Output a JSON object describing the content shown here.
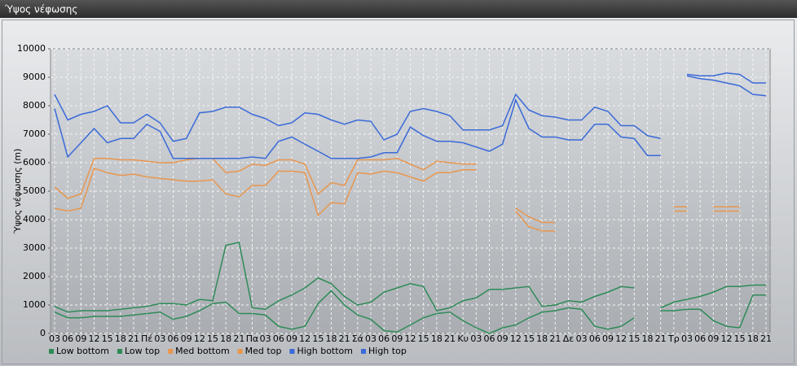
{
  "chart_data": {
    "type": "line",
    "title": "Ύψος νέφωσης",
    "y_label": "Ύψος νέφωσης (m)",
    "categories": [
      "03",
      "06",
      "09",
      "12",
      "15",
      "18",
      "21",
      "Πέ",
      "03",
      "06",
      "09",
      "12",
      "15",
      "18",
      "21",
      "Πα",
      "03",
      "06",
      "09",
      "12",
      "15",
      "18",
      "21",
      "Σά",
      "03",
      "06",
      "09",
      "12",
      "15",
      "18",
      "21",
      "Κυ",
      "03",
      "06",
      "09",
      "12",
      "15",
      "18",
      "21",
      "Δε",
      "03",
      "06",
      "09",
      "12",
      "15",
      "18",
      "21",
      "Τρ",
      "03",
      "06",
      "09",
      "12",
      "15",
      "18",
      "21"
    ],
    "ylim": [
      0,
      10000
    ],
    "yticks": [
      0,
      1000,
      2000,
      3000,
      4000,
      5000,
      6000,
      7000,
      8000,
      9000,
      10000
    ],
    "grid": true,
    "legend": "bottom",
    "series": [
      {
        "name": "Low bottom",
        "color": "#2e8b57",
        "values": [
          750,
          550,
          550,
          600,
          600,
          600,
          650,
          700,
          750,
          500,
          600,
          800,
          1050,
          1100,
          700,
          700,
          650,
          250,
          150,
          250,
          1050,
          1500,
          1000,
          650,
          500,
          100,
          50,
          300,
          550,
          700,
          750,
          450,
          200,
          0,
          200,
          300,
          550,
          750,
          800,
          900,
          850,
          250,
          150,
          250,
          550,
          null,
          800,
          800,
          850,
          850,
          450,
          250,
          200,
          1350,
          1350
        ]
      },
      {
        "name": "Low top",
        "color": "#2e8b57",
        "values": [
          950,
          750,
          800,
          800,
          800,
          850,
          900,
          950,
          1050,
          1050,
          1000,
          1200,
          1150,
          3100,
          3200,
          900,
          850,
          1150,
          1350,
          1600,
          1950,
          1750,
          1300,
          1000,
          1100,
          1450,
          1600,
          1750,
          1650,
          800,
          900,
          1150,
          1250,
          1550,
          1550,
          1600,
          1650,
          950,
          1000,
          1150,
          1100,
          1300,
          1450,
          1650,
          1600,
          null,
          900,
          1100,
          1200,
          1300,
          1450,
          1650,
          1650,
          1700,
          1700
        ]
      },
      {
        "name": "Med bottom",
        "color": "#e8964e",
        "values": [
          4400,
          4300,
          4400,
          5800,
          5650,
          5550,
          5600,
          5500,
          5450,
          5400,
          5350,
          5350,
          5400,
          4900,
          4800,
          5200,
          5200,
          5700,
          5700,
          5650,
          4150,
          4600,
          4550,
          5650,
          5600,
          5700,
          5650,
          5500,
          5350,
          5650,
          5650,
          5750,
          5750,
          null,
          null,
          4300,
          3750,
          3600,
          3600,
          null,
          null,
          null,
          null,
          null,
          null,
          null,
          null,
          4300,
          4300,
          null,
          4300,
          4300,
          4300,
          null,
          null
        ]
      },
      {
        "name": "Med top",
        "color": "#e8964e",
        "values": [
          5150,
          4750,
          4900,
          6150,
          6150,
          6100,
          6100,
          6050,
          6000,
          6000,
          6100,
          6150,
          6150,
          5650,
          5700,
          5950,
          5900,
          6100,
          6100,
          5950,
          4900,
          5300,
          5200,
          6100,
          6100,
          6100,
          6150,
          5950,
          5750,
          6050,
          6000,
          5950,
          5950,
          null,
          null,
          4400,
          4100,
          3900,
          3900,
          null,
          null,
          null,
          null,
          null,
          null,
          null,
          null,
          4450,
          4450,
          null,
          4450,
          4450,
          4450,
          null,
          null
        ]
      },
      {
        "name": "High bottom",
        "color": "#3a6ad8",
        "values": [
          7900,
          6200,
          6700,
          7200,
          6700,
          6850,
          6850,
          7350,
          7100,
          6150,
          6150,
          6150,
          6150,
          6150,
          6150,
          6200,
          6150,
          6750,
          6900,
          6650,
          6400,
          6150,
          6150,
          6150,
          6200,
          6350,
          6350,
          7250,
          6950,
          6750,
          6750,
          6700,
          6550,
          6400,
          6650,
          8200,
          7200,
          6900,
          6900,
          6800,
          6800,
          7350,
          7350,
          6900,
          6850,
          6250,
          6250,
          null,
          9050,
          8950,
          8900,
          8800,
          8700,
          8400,
          8350
        ]
      },
      {
        "name": "High top",
        "color": "#3a6ad8",
        "values": [
          8400,
          7500,
          7700,
          7800,
          8000,
          7400,
          7400,
          7700,
          7400,
          6750,
          6850,
          7750,
          7800,
          7950,
          7950,
          7700,
          7550,
          7300,
          7400,
          7750,
          7700,
          7500,
          7350,
          7500,
          7450,
          6800,
          7000,
          7800,
          7900,
          7800,
          7650,
          7150,
          7150,
          7150,
          7300,
          8400,
          7850,
          7650,
          7600,
          7500,
          7500,
          7950,
          7800,
          7300,
          7300,
          6950,
          6850,
          null,
          9100,
          9050,
          9050,
          9150,
          9100,
          8800,
          8800
        ]
      }
    ]
  }
}
